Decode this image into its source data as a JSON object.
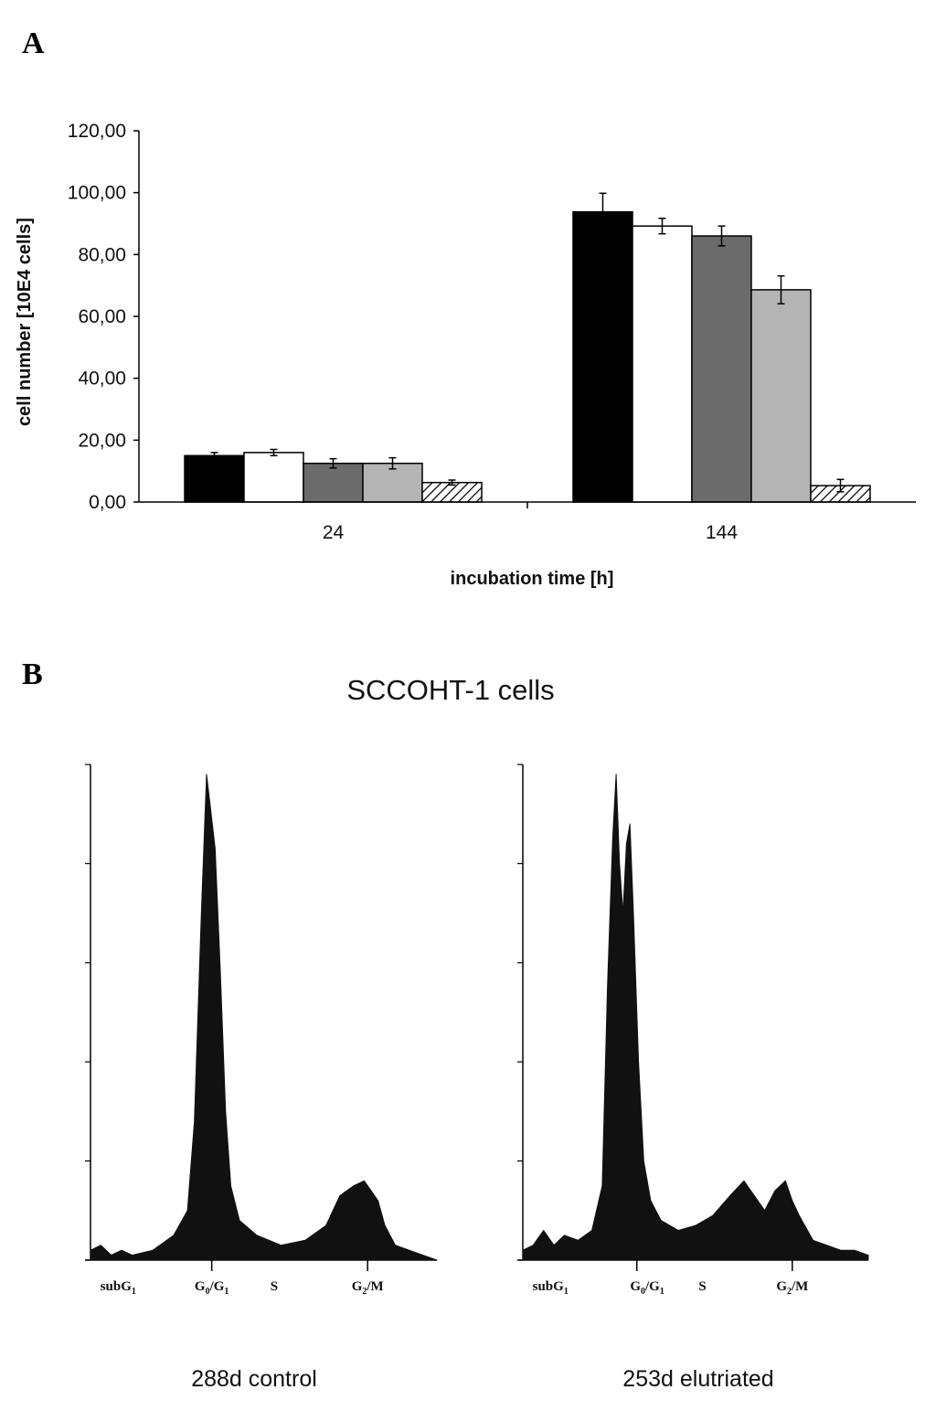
{
  "panel_a_label": "A",
  "panel_b_label": "B",
  "chart_data": [
    {
      "type": "bar",
      "panel": "A",
      "xlabel": "incubation time [h]",
      "ylabel": "cell number  [10E4 cells]",
      "ylim": [
        0,
        120
      ],
      "yticks": [
        "0,00",
        "20,00",
        "40,00",
        "60,00",
        "80,00",
        "100,00",
        "120,00"
      ],
      "yticks_values": [
        0,
        20,
        40,
        60,
        80,
        100,
        120
      ],
      "grid": false,
      "legend": "none",
      "categories": [
        "24",
        "144"
      ],
      "series": [
        {
          "fill": "#000000",
          "pattern": "solid",
          "values": [
            15.0,
            93.8
          ],
          "errors": [
            1.0,
            6.0
          ]
        },
        {
          "fill": "#ffffff",
          "pattern": "solid",
          "values": [
            16.0,
            89.2
          ],
          "errors": [
            1.0,
            2.5
          ]
        },
        {
          "fill": "#6b6b6b",
          "pattern": "solid",
          "values": [
            12.5,
            86.0
          ],
          "errors": [
            1.5,
            3.2
          ]
        },
        {
          "fill": "#b4b4b4",
          "pattern": "solid",
          "values": [
            12.5,
            68.6
          ],
          "errors": [
            1.8,
            4.5
          ]
        },
        {
          "fill": "#ffffff",
          "pattern": "hatched",
          "values": [
            6.3,
            5.3
          ],
          "errors": [
            0.8,
            2.0
          ]
        }
      ]
    },
    {
      "type": "area",
      "panel": "B",
      "title": "SCCOHT-1 cells",
      "caption": "288d control",
      "phase_labels": [
        {
          "main": "subG",
          "sub": "1",
          "x": 0.08
        },
        {
          "main": "G",
          "sub": "0",
          "mid": "/G",
          "sub2": "1",
          "x": 0.35
        },
        {
          "main": "S",
          "x": 0.53
        },
        {
          "main": "G",
          "sub": "2",
          "mid": "/M",
          "x": 0.8
        }
      ],
      "x_ticks": [
        0.35,
        0.8
      ],
      "x": [
        0.0,
        0.03,
        0.06,
        0.09,
        0.12,
        0.18,
        0.24,
        0.28,
        0.3,
        0.32,
        0.335,
        0.345,
        0.36,
        0.375,
        0.39,
        0.405,
        0.43,
        0.48,
        0.55,
        0.62,
        0.68,
        0.72,
        0.76,
        0.79,
        0.81,
        0.83,
        0.85,
        0.88,
        0.92,
        0.96,
        1.0
      ],
      "values": [
        0.02,
        0.03,
        0.01,
        0.02,
        0.01,
        0.02,
        0.05,
        0.1,
        0.28,
        0.7,
        0.98,
        0.92,
        0.83,
        0.58,
        0.3,
        0.15,
        0.08,
        0.05,
        0.03,
        0.04,
        0.07,
        0.13,
        0.15,
        0.16,
        0.14,
        0.12,
        0.07,
        0.03,
        0.02,
        0.01,
        0.0
      ]
    },
    {
      "type": "area",
      "panel": "B",
      "caption": "253d elutriated",
      "phase_labels": [
        {
          "main": "subG",
          "sub": "1",
          "x": 0.08
        },
        {
          "main": "G",
          "sub": "0",
          "mid": "/G",
          "sub2": "1",
          "x": 0.36
        },
        {
          "main": "S",
          "x": 0.52
        },
        {
          "main": "G",
          "sub": "2",
          "mid": "/M",
          "x": 0.78
        }
      ],
      "x_ticks": [
        0.33,
        0.78
      ],
      "x": [
        0.0,
        0.03,
        0.06,
        0.09,
        0.12,
        0.16,
        0.2,
        0.23,
        0.245,
        0.26,
        0.27,
        0.28,
        0.29,
        0.3,
        0.31,
        0.32,
        0.335,
        0.35,
        0.37,
        0.4,
        0.45,
        0.5,
        0.55,
        0.6,
        0.64,
        0.67,
        0.7,
        0.73,
        0.76,
        0.78,
        0.8,
        0.84,
        0.88,
        0.92,
        0.96,
        1.0
      ],
      "values": [
        0.02,
        0.03,
        0.06,
        0.03,
        0.05,
        0.04,
        0.06,
        0.15,
        0.55,
        0.85,
        0.98,
        0.8,
        0.7,
        0.84,
        0.88,
        0.7,
        0.4,
        0.2,
        0.12,
        0.08,
        0.06,
        0.07,
        0.09,
        0.13,
        0.16,
        0.13,
        0.1,
        0.14,
        0.16,
        0.12,
        0.09,
        0.04,
        0.03,
        0.02,
        0.02,
        0.01
      ]
    }
  ]
}
